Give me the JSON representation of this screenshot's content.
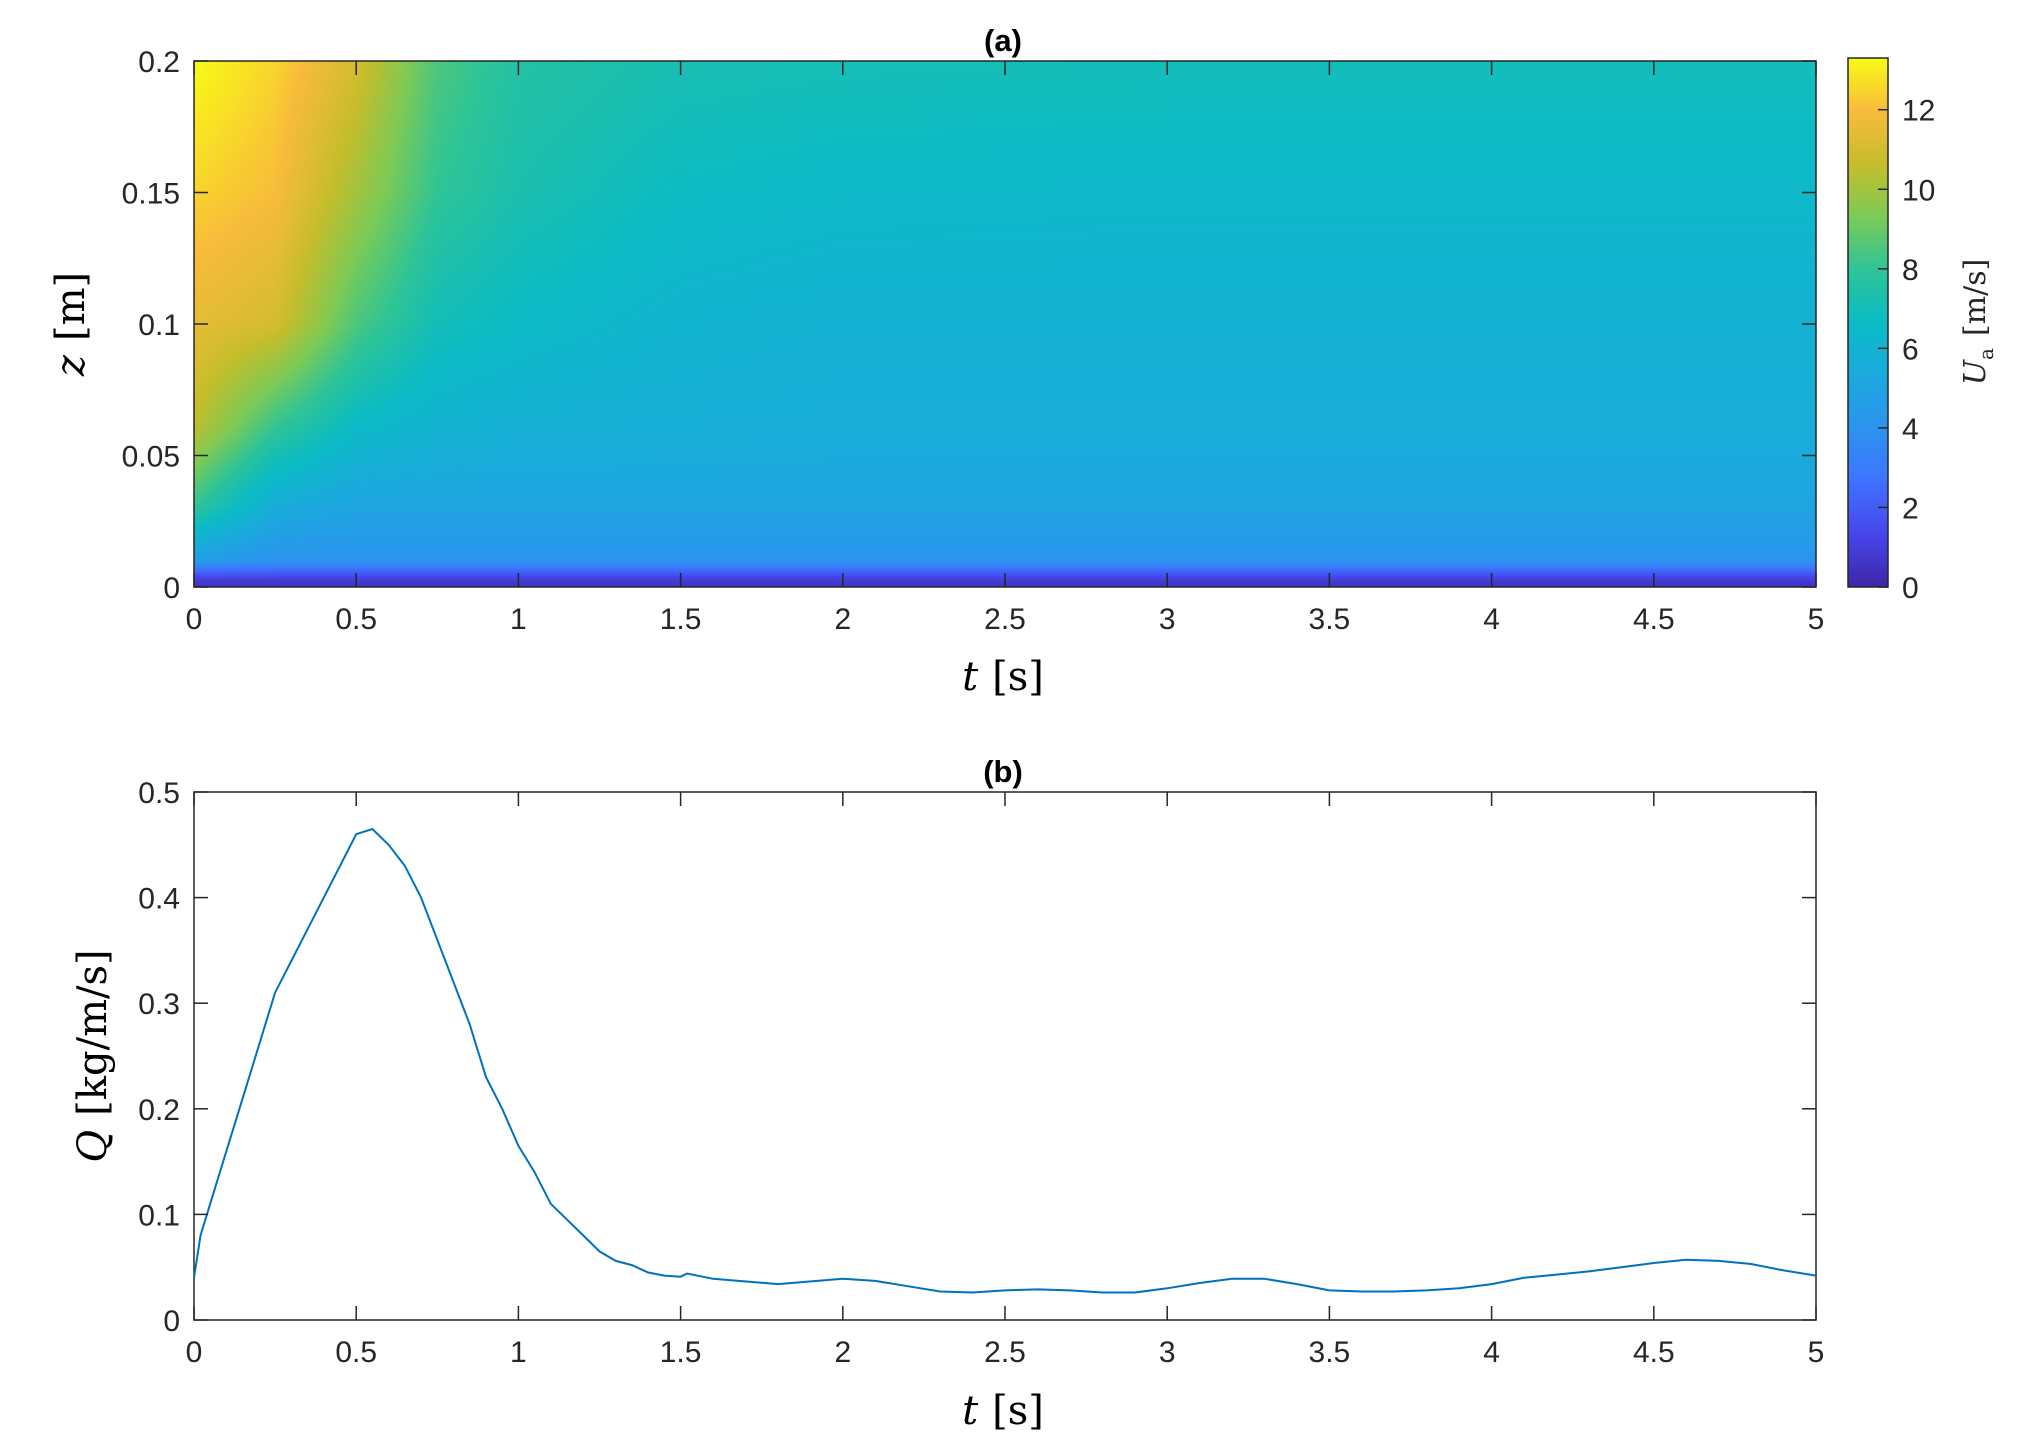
{
  "chart_data": [
    {
      "type": "heatmap",
      "title": "(a)",
      "xlabel": {
        "var": "t",
        "unit": "[s]"
      },
      "ylabel": {
        "var": "z",
        "unit": "[m]"
      },
      "xlim": [
        0,
        5
      ],
      "ylim": [
        0,
        0.2
      ],
      "xticks": [
        0,
        0.5,
        1,
        1.5,
        2,
        2.5,
        3,
        3.5,
        4,
        4.5,
        5
      ],
      "xtick_labels": [
        "0",
        "0.5",
        "1",
        "1.5",
        "2",
        "2.5",
        "3",
        "3.5",
        "4",
        "4.5",
        "5"
      ],
      "yticks": [
        0,
        0.05,
        0.1,
        0.15,
        0.2
      ],
      "ytick_labels": [
        "0",
        "0.05",
        "0.1",
        "0.15",
        "0.2"
      ],
      "colorbar": {
        "label": {
          "var": "U",
          "sub": "a",
          "unit": "[m/s]"
        },
        "clim": [
          0,
          13.3
        ],
        "ticks": [
          0,
          2,
          4,
          6,
          8,
          10,
          12
        ],
        "tick_labels": [
          "0",
          "2",
          "4",
          "6",
          "8",
          "10",
          "12"
        ],
        "colormap": "parula"
      },
      "field_samples": {
        "t": [
          0,
          0.25,
          0.5,
          0.75,
          1.0,
          1.5,
          2.0,
          3.0,
          4.0,
          5.0
        ],
        "z": [
          0.0,
          0.003,
          0.01,
          0.03,
          0.06,
          0.1,
          0.15,
          0.2
        ],
        "U": [
          [
            0.5,
            1.0,
            4.5,
            8.0,
            10.5,
            11.5,
            12.5,
            13.3
          ],
          [
            0.5,
            1.0,
            4.0,
            5.5,
            8.0,
            11.0,
            12.0,
            12.5
          ],
          [
            0.5,
            1.0,
            4.0,
            5.0,
            6.5,
            8.5,
            10.0,
            11.0
          ],
          [
            0.5,
            1.0,
            4.0,
            5.0,
            6.0,
            7.0,
            8.0,
            8.5
          ],
          [
            0.5,
            1.0,
            4.0,
            5.0,
            5.8,
            6.6,
            7.3,
            7.6
          ],
          [
            0.5,
            1.0,
            4.0,
            5.0,
            5.7,
            6.1,
            6.7,
            7.2
          ],
          [
            0.5,
            1.0,
            4.0,
            5.0,
            5.6,
            5.9,
            6.5,
            7.1
          ],
          [
            0.5,
            1.0,
            4.0,
            5.0,
            5.6,
            5.9,
            6.4,
            7.0
          ],
          [
            0.5,
            1.0,
            4.0,
            5.0,
            5.6,
            5.9,
            6.4,
            7.0
          ],
          [
            0.5,
            1.0,
            4.0,
            5.0,
            5.6,
            5.9,
            6.4,
            7.0
          ]
        ]
      }
    },
    {
      "type": "line",
      "title": "(b)",
      "xlabel": {
        "var": "t",
        "unit": "[s]"
      },
      "ylabel": {
        "var": "Q",
        "unit": "[kg/m/s]"
      },
      "xlim": [
        0,
        5
      ],
      "ylim": [
        0,
        0.5
      ],
      "xticks": [
        0,
        0.5,
        1,
        1.5,
        2,
        2.5,
        3,
        3.5,
        4,
        4.5,
        5
      ],
      "xtick_labels": [
        "0",
        "0.5",
        "1",
        "1.5",
        "2",
        "2.5",
        "3",
        "3.5",
        "4",
        "4.5",
        "5"
      ],
      "yticks": [
        0,
        0.1,
        0.2,
        0.3,
        0.4,
        0.5
      ],
      "ytick_labels": [
        "0",
        "0.1",
        "0.2",
        "0.3",
        "0.4",
        "0.5"
      ],
      "line_color": "#0072BD",
      "series": [
        {
          "x": [
            0,
            0.02,
            0.05,
            0.1,
            0.15,
            0.2,
            0.25,
            0.3,
            0.35,
            0.4,
            0.45,
            0.5,
            0.55,
            0.6,
            0.65,
            0.7,
            0.75,
            0.8,
            0.85,
            0.9,
            0.95,
            1.0,
            1.05,
            1.1,
            1.15,
            1.2,
            1.25,
            1.3,
            1.35,
            1.4,
            1.45,
            1.5,
            1.52,
            1.6,
            1.8,
            2.0,
            2.1,
            2.2,
            2.3,
            2.4,
            2.5,
            2.6,
            2.7,
            2.8,
            2.9,
            3.0,
            3.1,
            3.2,
            3.3,
            3.4,
            3.5,
            3.6,
            3.7,
            3.8,
            3.9,
            4.0,
            4.1,
            4.2,
            4.3,
            4.4,
            4.5,
            4.6,
            4.7,
            4.8,
            4.9,
            5.0
          ],
          "y": [
            0.04,
            0.08,
            0.11,
            0.16,
            0.21,
            0.26,
            0.31,
            0.34,
            0.37,
            0.4,
            0.43,
            0.46,
            0.465,
            0.45,
            0.43,
            0.4,
            0.36,
            0.32,
            0.28,
            0.23,
            0.2,
            0.165,
            0.14,
            0.11,
            0.095,
            0.08,
            0.065,
            0.056,
            0.052,
            0.045,
            0.042,
            0.041,
            0.044,
            0.039,
            0.034,
            0.039,
            0.037,
            0.032,
            0.027,
            0.026,
            0.028,
            0.029,
            0.028,
            0.026,
            0.026,
            0.03,
            0.035,
            0.039,
            0.039,
            0.034,
            0.028,
            0.027,
            0.027,
            0.028,
            0.03,
            0.034,
            0.04,
            0.043,
            0.046,
            0.05,
            0.054,
            0.057,
            0.056,
            0.053,
            0.047,
            0.042
          ]
        }
      ]
    }
  ]
}
